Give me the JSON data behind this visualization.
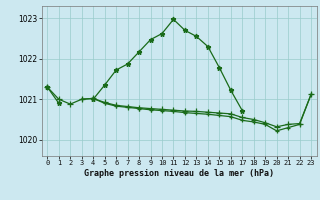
{
  "title": "Graphe pression niveau de la mer (hPa)",
  "background_color": "#cce8f0",
  "grid_color": "#99cccc",
  "line_color": "#1a6b1a",
  "x_labels": [
    "0",
    "1",
    "2",
    "3",
    "4",
    "5",
    "6",
    "7",
    "8",
    "9",
    "10",
    "11",
    "12",
    "13",
    "14",
    "15",
    "16",
    "17",
    "18",
    "19",
    "20",
    "21",
    "22",
    "23"
  ],
  "ylim": [
    1019.6,
    1023.3
  ],
  "yticks": [
    1020,
    1021,
    1022,
    1023
  ],
  "s1": [
    1021.3,
    1020.9,
    null,
    null,
    1021.0,
    1021.35,
    1021.72,
    1021.87,
    1022.17,
    1022.47,
    1022.62,
    1022.97,
    1022.7,
    1022.55,
    1022.3,
    1021.78,
    1021.22,
    1020.72,
    null,
    null,
    null,
    null,
    null,
    null
  ],
  "s2": [
    1021.3,
    1021.0,
    1020.88,
    1021.0,
    1021.02,
    1020.92,
    1020.85,
    1020.82,
    1020.79,
    1020.77,
    1020.75,
    1020.73,
    1020.71,
    1020.7,
    1020.68,
    1020.66,
    1020.64,
    1020.55,
    1020.5,
    1020.42,
    1020.32,
    1020.38,
    1020.4,
    1021.12
  ],
  "s3": [
    null,
    null,
    null,
    1021.0,
    1021.02,
    1020.9,
    1020.83,
    1020.8,
    1020.77,
    1020.74,
    1020.72,
    1020.7,
    1020.67,
    1020.65,
    1020.63,
    1020.6,
    1020.57,
    1020.48,
    1020.44,
    1020.38,
    1020.22,
    1020.3,
    1020.38,
    1021.12
  ]
}
